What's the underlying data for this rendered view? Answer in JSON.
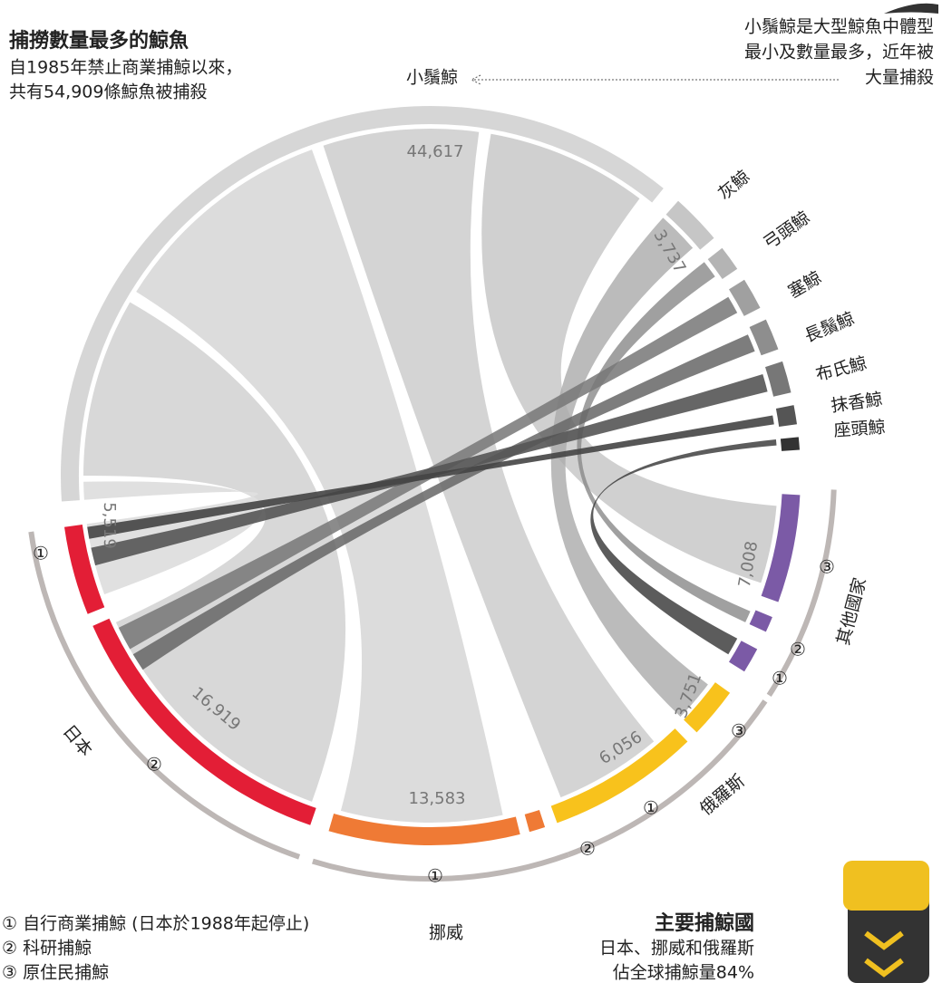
{
  "header": {
    "title": "捕撈數量最多的鯨魚",
    "subtitle": [
      "自1985年禁止商業捕鯨以來，",
      "共有54,909條鯨魚被捕殺"
    ]
  },
  "annotation": {
    "label": "小鬚鯨",
    "text": [
      "小鬚鯨是大型鯨魚中體型",
      "最小及數量最多，近年被",
      "大量捕殺"
    ]
  },
  "whales": [
    {
      "label": "灰鯨"
    },
    {
      "label": "弓頭鯨"
    },
    {
      "label": "塞鯨"
    },
    {
      "label": "長鬚鯨"
    },
    {
      "label": "布氏鯨"
    },
    {
      "label": "抹香鯨"
    },
    {
      "label": "座頭鯨"
    }
  ],
  "countries": [
    {
      "label": "日本"
    },
    {
      "label": "挪威"
    },
    {
      "label": "俄羅斯"
    },
    {
      "label": "其他國家"
    }
  ],
  "markers": [
    "①",
    "②",
    "③"
  ],
  "values": [
    "44,617",
    "3,737",
    "5,519",
    "16,919",
    "13,583",
    "6,056",
    "3,751",
    "7,008"
  ],
  "legend": [
    "① 自行商業捕鯨 (日本於1988年起停止)",
    "② 科研捕鯨",
    "③ 原住民捕鯨"
  ],
  "footer": {
    "title": "主要捕鯨國",
    "text": [
      "日本、挪威和俄羅斯",
      "佔全球捕鯨量84%"
    ]
  }
}
